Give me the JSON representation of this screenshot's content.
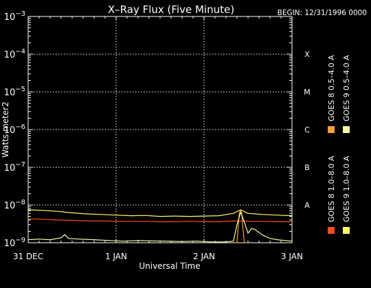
{
  "chart_data": {
    "type": "line",
    "title": "X–Ray Flux (Five Minute)",
    "begin_label": "BEGIN: 12/31/1996 0000",
    "ylabel": "Watts meter2",
    "xlabel": "Universal Time",
    "y_scale": "log",
    "ylim": [
      1e-09,
      0.001
    ],
    "y_ticks": [
      {
        "base": "10",
        "exp": "−3",
        "value": 0.001
      },
      {
        "base": "10",
        "exp": "−4",
        "value": 0.0001
      },
      {
        "base": "10",
        "exp": "−5",
        "value": 1e-05
      },
      {
        "base": "10",
        "exp": "−6",
        "value": 1e-06
      },
      {
        "base": "10",
        "exp": "−7",
        "value": 1e-07
      },
      {
        "base": "10",
        "exp": "−8",
        "value": 1e-08
      },
      {
        "base": "10",
        "exp": "−9",
        "value": 1e-09
      }
    ],
    "x_range_hours": [
      0,
      72
    ],
    "x_ticks": [
      {
        "label": "31 DEC",
        "hour": 0
      },
      {
        "label": "1 JAN",
        "hour": 24
      },
      {
        "label": "2 JAN",
        "hour": 48
      },
      {
        "label": "3 JAN",
        "hour": 72
      }
    ],
    "flare_classes": [
      {
        "label": "X",
        "value": 0.0001
      },
      {
        "label": "M",
        "value": 1e-05
      },
      {
        "label": "C",
        "value": 1e-06
      },
      {
        "label": "B",
        "value": 1e-07
      },
      {
        "label": "A",
        "value": 1e-08
      }
    ],
    "grid": true,
    "legend_position": "right",
    "series": [
      {
        "name": "GOES 8 1.0–8.0 A",
        "color": "#ff4a1a",
        "x": [
          0,
          4,
          8,
          12,
          16,
          20,
          24,
          28,
          32,
          36,
          40,
          44,
          48,
          52,
          56,
          60,
          64,
          68,
          72
        ],
        "y": [
          4.3e-09,
          4.2e-09,
          4e-09,
          3.9e-09,
          3.8e-09,
          3.8e-09,
          3.7e-09,
          3.7e-09,
          3.7e-09,
          3.6e-09,
          3.6e-09,
          3.7e-09,
          3.6e-09,
          3.6e-09,
          3.8e-09,
          3.7e-09,
          3.7e-09,
          3.6e-09,
          3.6e-09
        ]
      },
      {
        "name": "GOES 9 1.0–8.0 A",
        "color": "#ffff66",
        "x": [
          0,
          4,
          8,
          12,
          16,
          20,
          24,
          28,
          32,
          36,
          40,
          44,
          48,
          52,
          56,
          58,
          60,
          64,
          68,
          72
        ],
        "y": [
          7.5e-09,
          7.2e-09,
          6.8e-09,
          6.2e-09,
          5.8e-09,
          5.6e-09,
          5.4e-09,
          5.2e-09,
          5.3e-09,
          5e-09,
          5.1e-09,
          5e-09,
          5.1e-09,
          5.2e-09,
          6e-09,
          7.5e-09,
          6e-09,
          5.6e-09,
          5.4e-09,
          5.2e-09
        ]
      },
      {
        "name": "GOES 8 0.5–4.0 A",
        "color": "#ff9f3a",
        "x": [
          56.5,
          57.0,
          57.3,
          57.6,
          58.0,
          58.3,
          58.6,
          59.0,
          59.5
        ],
        "y": [
          1e-09,
          1e-09,
          2.5e-09,
          6e-09,
          7.5e-09,
          6e-09,
          2.5e-09,
          1e-09,
          1e-09
        ]
      },
      {
        "name": "GOES 9 0.5–4.0 A",
        "color": "#ffffaa",
        "x": [
          0,
          3,
          6,
          9,
          10,
          11,
          14,
          18,
          22,
          26,
          30,
          34,
          38,
          42,
          46,
          50,
          54,
          56,
          57,
          58,
          59,
          60,
          61,
          62,
          64,
          66,
          68,
          72
        ],
        "y": [
          1.2e-09,
          1.25e-09,
          1.2e-09,
          1.35e-09,
          1.65e-09,
          1.3e-09,
          1.25e-09,
          1.2e-09,
          1.15e-09,
          1.1e-09,
          1.15e-09,
          1.12e-09,
          1.1e-09,
          1.08e-09,
          1.1e-09,
          1.05e-09,
          1.05e-09,
          1.1e-09,
          3e-09,
          6.5e-09,
          3.5e-09,
          1.8e-09,
          2.4e-09,
          2.2e-09,
          1.6e-09,
          1.3e-09,
          1.2e-09,
          1.1e-09
        ]
      }
    ]
  }
}
